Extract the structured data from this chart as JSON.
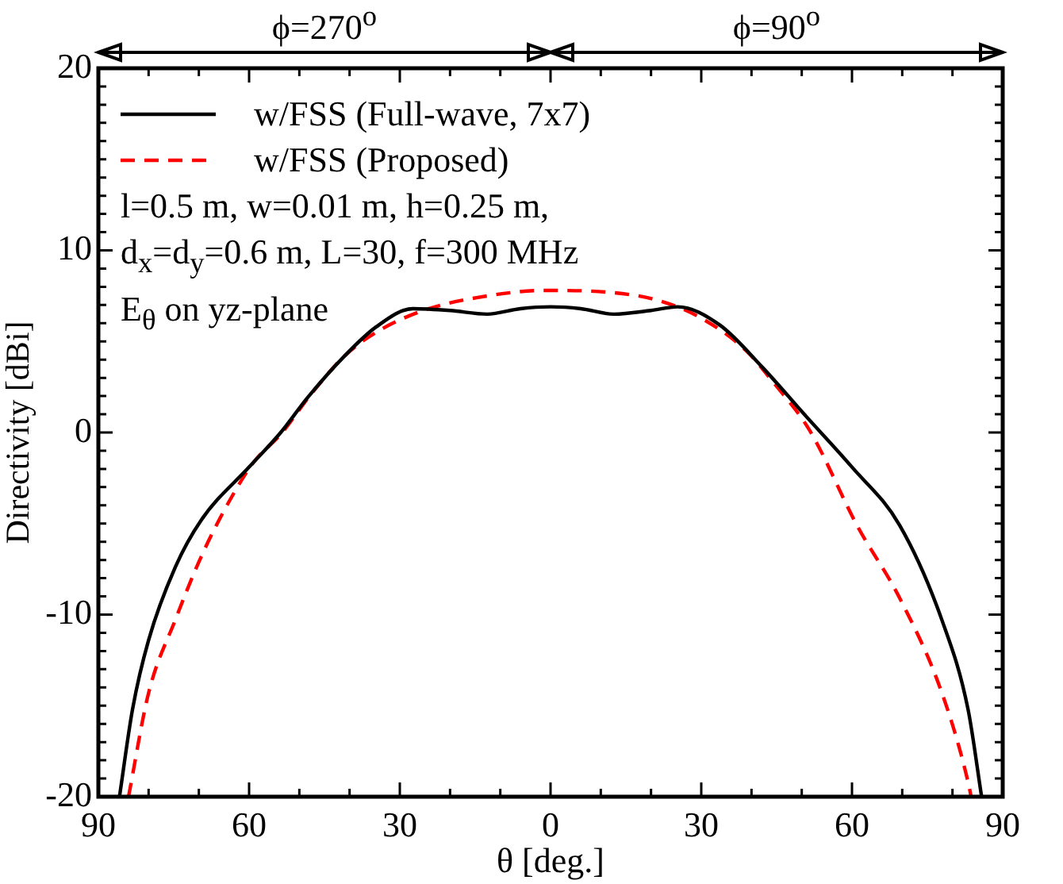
{
  "chart_data": {
    "type": "line",
    "xlabel": "θ [deg.]",
    "ylabel": "Directivity [dBi]",
    "xlim": [
      -90,
      90
    ],
    "ylim": [
      -20,
      20
    ],
    "xticks": [
      {
        "value": -90,
        "label": "90"
      },
      {
        "value": -80,
        "label": null
      },
      {
        "value": -70,
        "label": null
      },
      {
        "value": -60,
        "label": "60"
      },
      {
        "value": -50,
        "label": null
      },
      {
        "value": -40,
        "label": null
      },
      {
        "value": -30,
        "label": "30"
      },
      {
        "value": -20,
        "label": null
      },
      {
        "value": -10,
        "label": null
      },
      0,
      {
        "value": 10,
        "label": null
      },
      {
        "value": 20,
        "label": null
      },
      {
        "value": 30,
        "label": "30"
      },
      {
        "value": 40,
        "label": null
      },
      {
        "value": 50,
        "label": null
      },
      {
        "value": 60,
        "label": "60"
      },
      {
        "value": 70,
        "label": null
      },
      {
        "value": 80,
        "label": null
      },
      {
        "value": 90,
        "label": "90"
      }
    ],
    "yticks": [
      -20,
      {
        "value": -19,
        "label": null
      },
      {
        "value": -18,
        "label": null
      },
      {
        "value": -17,
        "label": null
      },
      {
        "value": -16,
        "label": null
      },
      {
        "value": -15,
        "label": null
      },
      {
        "value": -14,
        "label": null
      },
      {
        "value": -13,
        "label": null
      },
      {
        "value": -12,
        "label": null
      },
      {
        "value": -11,
        "label": null
      },
      -10,
      {
        "value": -9,
        "label": null
      },
      {
        "value": -8,
        "label": null
      },
      {
        "value": -7,
        "label": null
      },
      {
        "value": -6,
        "label": null
      },
      {
        "value": -5,
        "label": null
      },
      {
        "value": -4,
        "label": null
      },
      {
        "value": -3,
        "label": null
      },
      {
        "value": -2,
        "label": null
      },
      {
        "value": -1,
        "label": null
      },
      0,
      {
        "value": 1,
        "label": null
      },
      {
        "value": 2,
        "label": null
      },
      {
        "value": 3,
        "label": null
      },
      {
        "value": 4,
        "label": null
      },
      {
        "value": 5,
        "label": null
      },
      {
        "value": 6,
        "label": null
      },
      {
        "value": 7,
        "label": null
      },
      {
        "value": 8,
        "label": null
      },
      {
        "value": 9,
        "label": null
      },
      10,
      {
        "value": 11,
        "label": null
      },
      {
        "value": 12,
        "label": null
      },
      {
        "value": 13,
        "label": null
      },
      {
        "value": 14,
        "label": null
      },
      {
        "value": 15,
        "label": null
      },
      {
        "value": 16,
        "label": null
      },
      {
        "value": 17,
        "label": null
      },
      {
        "value": 18,
        "label": null
      },
      {
        "value": 19,
        "label": null
      },
      20
    ],
    "grid": false,
    "legend": "top left",
    "marker": "none",
    "annotations": [
      "ϕ=270$^{o}$",
      "ϕ=90$^{o}$",
      "l=0.5 m, w=0.01 m, h=0.25 m,",
      "d$_{x}$=d$_{y}$=0.6 m, L=30, f=300 MHz",
      "E$_{θ}$ on yz-plane"
    ],
    "series": [
      {
        "name": "w/FSS (Full-wave, 7x7)",
        "color": "#000000",
        "line_style": "solid",
        "x": [
          -85.8,
          -83.2,
          -80,
          -74.7,
          -69.5,
          -60,
          -53.7,
          -48.4,
          -41,
          -34.7,
          -27.4,
          -20,
          -12.6,
          -6,
          0,
          6,
          12.6,
          20,
          25.3,
          33.7,
          42.1,
          50.5,
          60,
          69.5,
          77.9,
          83.1,
          85.8
        ],
        "values": [
          -20,
          -15.2,
          -11.4,
          -7.4,
          -4.8,
          -1.9,
          0,
          1.9,
          4.2,
          5.8,
          6.8,
          6.7,
          6.5,
          6.8,
          6.9,
          6.8,
          6.5,
          6.7,
          6.9,
          5.9,
          3.6,
          1,
          -1.9,
          -5.1,
          -10.3,
          -15.2,
          -20
        ]
      },
      {
        "name": "w/FSS (Proposed)",
        "color": "#ff0000",
        "line_style": "dashed",
        "x": [
          -84,
          -80,
          -74.7,
          -69.5,
          -64.2,
          -59,
          -53.7,
          -47.4,
          -41,
          -34.7,
          -25.3,
          -14.7,
          -1,
          11.6,
          22.1,
          30.5,
          38.9,
          44.2,
          51.6,
          61,
          69.5,
          77.9,
          83.2,
          83.7
        ],
        "values": [
          -20,
          -14.3,
          -10.3,
          -6.8,
          -3.9,
          -1.6,
          -0.1,
          2.2,
          4.2,
          5.5,
          6.7,
          7.4,
          7.8,
          7.7,
          7.2,
          6.2,
          4.5,
          2.8,
          0.1,
          -5.1,
          -9.1,
          -14.3,
          -19.3,
          -20
        ]
      }
    ]
  }
}
